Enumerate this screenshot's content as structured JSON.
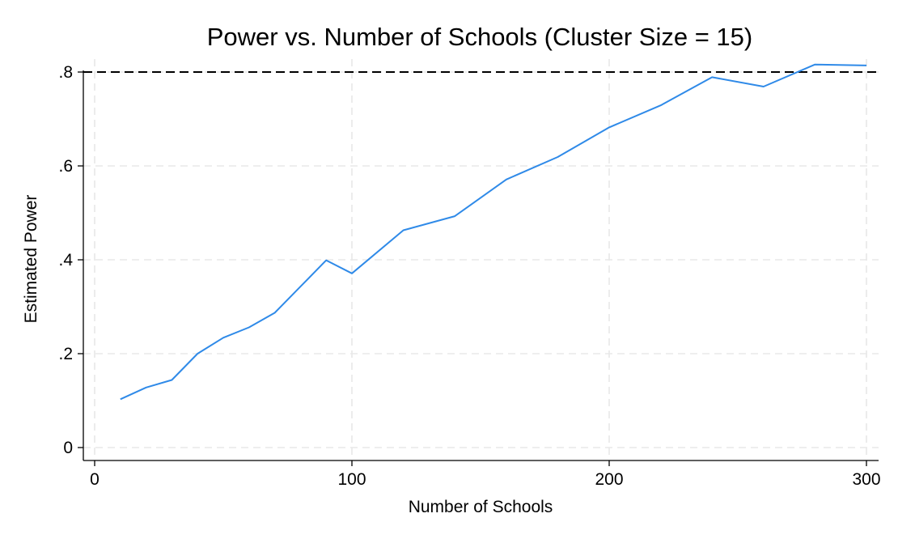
{
  "chart_data": {
    "type": "line",
    "title": "Power vs. Number of Schools (Cluster Size = 15)",
    "xlabel": "Number of Schools",
    "ylabel": "Estimated Power",
    "xlim": [
      0,
      300
    ],
    "ylim": [
      0,
      0.8
    ],
    "xticks": [
      {
        "value": 0,
        "label": "0"
      },
      {
        "value": 100,
        "label": "100"
      },
      {
        "value": 200,
        "label": "200"
      },
      {
        "value": 300,
        "label": "300"
      }
    ],
    "yticks": [
      {
        "value": 0,
        "label": "0"
      },
      {
        "value": 0.2,
        "label": ".2"
      },
      {
        "value": 0.4,
        "label": ".4"
      },
      {
        "value": 0.6,
        "label": ".6"
      },
      {
        "value": 0.8,
        "label": ".8"
      }
    ],
    "grid": true,
    "reference_line": {
      "axis": "y",
      "value": 0.8,
      "style": "dashed",
      "color": "#000000"
    },
    "series": [
      {
        "color": "#2f8ae8",
        "x": [
          10,
          20,
          30,
          40,
          50,
          60,
          70,
          80,
          90,
          100,
          120,
          140,
          160,
          180,
          200,
          220,
          240,
          260,
          280,
          300
        ],
        "y": [
          0.103,
          0.128,
          0.144,
          0.2,
          0.234,
          0.256,
          0.287,
          0.343,
          0.399,
          0.371,
          0.463,
          0.493,
          0.571,
          0.619,
          0.682,
          0.729,
          0.789,
          0.769,
          0.816,
          0.814
        ]
      }
    ]
  }
}
